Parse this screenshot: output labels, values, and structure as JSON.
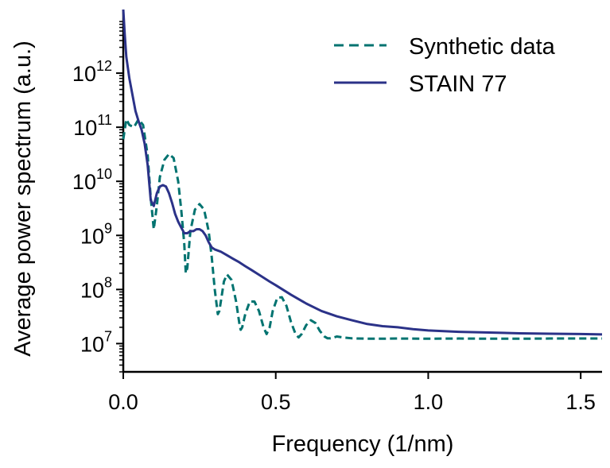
{
  "chart_data": {
    "type": "line",
    "xlabel": "Frequency (1/nm)",
    "ylabel": "Average power spectrum (a.u.)",
    "x_scale": "linear",
    "y_scale": "log",
    "xlim": [
      0.0,
      1.57
    ],
    "ylim": [
      3000000,
      15000000000000
    ],
    "x_ticks": [
      {
        "value": 0.0,
        "label": "0.0"
      },
      {
        "value": 0.5,
        "label": "0.5"
      },
      {
        "value": 1.0,
        "label": "1.0"
      },
      {
        "value": 1.5,
        "label": "1.5"
      }
    ],
    "y_ticks": [
      {
        "value": 10000000,
        "base": "10",
        "exp": "7"
      },
      {
        "value": 100000000,
        "base": "10",
        "exp": "8"
      },
      {
        "value": 1000000000,
        "base": "10",
        "exp": "9"
      },
      {
        "value": 10000000000,
        "base": "10",
        "exp": "10"
      },
      {
        "value": 100000000000,
        "base": "10",
        "exp": "11"
      },
      {
        "value": 1000000000000,
        "base": "10",
        "exp": "12"
      }
    ],
    "grid": false,
    "legend_position": "top-right",
    "series": [
      {
        "name": "Synthetic data",
        "color": "#007370",
        "style": "dashed",
        "x": [
          0.0,
          0.01,
          0.02,
          0.035,
          0.05,
          0.065,
          0.08,
          0.09,
          0.1,
          0.11,
          0.12,
          0.135,
          0.15,
          0.165,
          0.18,
          0.19,
          0.2,
          0.205,
          0.21,
          0.22,
          0.235,
          0.25,
          0.265,
          0.28,
          0.29,
          0.3,
          0.31,
          0.315,
          0.32,
          0.33,
          0.34,
          0.355,
          0.37,
          0.38,
          0.385,
          0.39,
          0.4,
          0.415,
          0.43,
          0.445,
          0.46,
          0.47,
          0.48,
          0.49,
          0.505,
          0.52,
          0.535,
          0.55,
          0.565,
          0.575,
          0.585,
          0.6,
          0.615,
          0.63,
          0.645,
          0.66,
          0.67,
          0.68,
          0.7,
          0.72,
          0.75,
          0.8,
          0.85,
          0.9,
          1.0,
          1.1,
          1.2,
          1.3,
          1.4,
          1.5,
          1.57
        ],
        "y": [
          60000000000,
          140000000000,
          110000000000,
          100000000000,
          140000000000,
          110000000000,
          30000000000,
          5000000000,
          1300000000,
          3500000000,
          12000000000,
          25000000000,
          32000000000,
          27000000000,
          10000000000,
          3000000000,
          700000000,
          200000000,
          250000000,
          1200000000,
          3000000000,
          3800000000,
          3000000000,
          1200000000,
          400000000,
          100000000,
          35000000,
          40000000,
          60000000,
          140000000,
          190000000,
          150000000,
          60000000,
          25000000,
          18000000,
          20000000,
          35000000,
          60000000,
          60000000,
          40000000,
          20000000,
          15000000,
          20000000,
          40000000,
          70000000,
          72000000,
          50000000,
          25000000,
          15000000,
          13000000,
          15000000,
          22000000,
          27000000,
          24000000,
          17000000,
          13500000,
          12500000,
          12500000,
          13500000,
          13000000,
          12500000,
          12300000,
          12300000,
          12400000,
          12300000,
          12400000,
          12300000,
          12300000,
          12400000,
          12400000,
          12400000
        ]
      },
      {
        "name": "STAIN 77",
        "color": "#2b3288",
        "style": "solid",
        "x": [
          0.0,
          0.005,
          0.01,
          0.02,
          0.03,
          0.04,
          0.05,
          0.06,
          0.07,
          0.08,
          0.09,
          0.1,
          0.11,
          0.12,
          0.13,
          0.14,
          0.15,
          0.16,
          0.17,
          0.18,
          0.19,
          0.2,
          0.21,
          0.22,
          0.23,
          0.24,
          0.25,
          0.26,
          0.27,
          0.28,
          0.29,
          0.3,
          0.32,
          0.34,
          0.36,
          0.38,
          0.4,
          0.42,
          0.45,
          0.48,
          0.5,
          0.55,
          0.6,
          0.65,
          0.7,
          0.75,
          0.8,
          0.85,
          0.9,
          0.95,
          1.0,
          1.1,
          1.2,
          1.3,
          1.4,
          1.5,
          1.57
        ],
        "y": [
          15000000000000,
          5000000000000,
          2000000000000,
          800000000000,
          400000000000,
          200000000000,
          130000000000,
          90000000000,
          50000000000,
          20000000000,
          4500000000,
          3500000000,
          6000000000,
          8000000000,
          8500000000,
          8000000000,
          6000000000,
          4000000000,
          2500000000,
          1800000000,
          1400000000,
          1100000000,
          1100000000,
          1200000000,
          1200000000,
          1300000000,
          1300000000,
          1200000000,
          1000000000,
          750000000,
          600000000,
          550000000,
          500000000,
          430000000,
          370000000,
          320000000,
          270000000,
          230000000,
          180000000,
          140000000,
          120000000,
          80000000,
          55000000,
          40000000,
          32000000,
          27000000,
          23000000,
          21000000,
          20000000,
          18500000,
          17500000,
          16500000,
          16000000,
          15500000,
          15200000,
          15000000,
          14800000
        ]
      }
    ]
  }
}
